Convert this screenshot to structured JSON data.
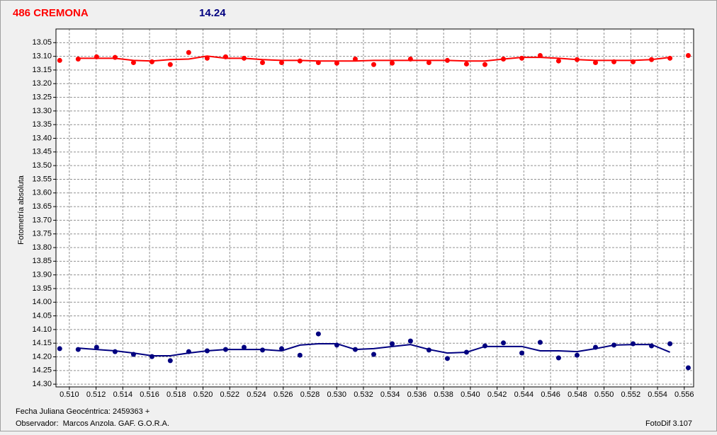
{
  "header": {
    "title": "486 CREMONA",
    "magnitude": "14.24"
  },
  "chart_data": {
    "type": "scatter",
    "ylabel": "Fotometría absoluta",
    "y_inverted": true,
    "grid": true,
    "xlim": [
      0.509,
      0.5567
    ],
    "ylim": [
      13.0,
      14.31
    ],
    "xticks": [
      {
        "value": 0.51,
        "label": "0.510"
      },
      0.512,
      0.514,
      0.516,
      0.518,
      {
        "value": 0.52,
        "label": "0.520"
      },
      0.522,
      0.524,
      0.526,
      0.528,
      {
        "value": 0.53,
        "label": "0.530"
      },
      0.532,
      0.534,
      0.536,
      0.538,
      {
        "value": 0.54,
        "label": "0.540"
      },
      0.542,
      0.544,
      0.546,
      0.548,
      {
        "value": 0.55,
        "label": "0.550"
      },
      0.552,
      0.554,
      0.556
    ],
    "yticks": [
      13.05,
      {
        "value": 13.1,
        "label": "13.10"
      },
      13.15,
      {
        "value": 13.2,
        "label": "13.20"
      },
      13.25,
      {
        "value": 13.3,
        "label": "13.30"
      },
      13.35,
      {
        "value": 13.4,
        "label": "13.40"
      },
      13.45,
      {
        "value": 13.5,
        "label": "13.50"
      },
      13.55,
      {
        "value": 13.6,
        "label": "13.60"
      },
      13.65,
      {
        "value": 13.7,
        "label": "13.70"
      },
      13.75,
      {
        "value": 13.8,
        "label": "13.80"
      },
      13.85,
      {
        "value": 13.9,
        "label": "13.90"
      },
      13.95,
      {
        "value": 14,
        "label": "14.00"
      },
      14.05,
      {
        "value": 14.1,
        "label": "14.10"
      },
      14.15,
      {
        "value": 14.2,
        "label": "14.20"
      },
      14.25,
      {
        "value": 14.3,
        "label": "14.30"
      }
    ],
    "x": [
      0.50928,
      0.51066,
      0.51204,
      0.51342,
      0.5148,
      0.51618,
      0.51755,
      0.51893,
      0.52031,
      0.52169,
      0.52307,
      0.52445,
      0.52588,
      0.52725,
      0.52863,
      0.53001,
      0.53139,
      0.53277,
      0.53415,
      0.53552,
      0.5369,
      0.53828,
      0.53971,
      0.54109,
      0.54247,
      0.54385,
      0.54522,
      0.5466,
      0.54798,
      0.54936,
      0.55074,
      0.55217,
      0.55355,
      0.55493,
      0.5563
    ],
    "series": [
      {
        "color": "#ff0000",
        "values": [
          13.115,
          13.11,
          13.102,
          13.104,
          13.123,
          13.12,
          13.13,
          13.086,
          13.107,
          13.102,
          13.107,
          13.123,
          13.123,
          13.117,
          13.123,
          13.125,
          13.11,
          13.13,
          13.125,
          13.11,
          13.123,
          13.115,
          13.128,
          13.13,
          13.11,
          13.107,
          13.097,
          13.117,
          13.112,
          13.123,
          13.12,
          13.12,
          13.112,
          13.107,
          13.097
        ],
        "fit": [
          null,
          13.107,
          13.107,
          13.107,
          13.115,
          13.117,
          13.112,
          13.11,
          13.099,
          13.107,
          13.107,
          13.112,
          13.115,
          13.115,
          13.117,
          13.117,
          13.117,
          13.115,
          13.115,
          13.115,
          13.115,
          13.115,
          13.117,
          13.117,
          13.11,
          13.104,
          13.104,
          13.107,
          13.112,
          13.115,
          13.115,
          13.115,
          13.112,
          13.104,
          null
        ]
      },
      {
        "color": "#000080",
        "values": [
          14.17,
          14.173,
          14.165,
          14.181,
          14.191,
          14.199,
          14.214,
          14.181,
          14.178,
          14.173,
          14.165,
          14.175,
          14.17,
          14.194,
          14.116,
          14.157,
          14.173,
          14.191,
          14.152,
          14.142,
          14.175,
          14.206,
          14.183,
          14.16,
          14.149,
          14.186,
          14.147,
          14.204,
          14.194,
          14.165,
          14.157,
          14.152,
          14.16,
          14.152,
          14.24
        ],
        "fit": [
          null,
          14.168,
          14.173,
          14.178,
          14.186,
          14.196,
          14.196,
          14.186,
          14.178,
          14.173,
          14.173,
          14.173,
          14.178,
          14.157,
          14.152,
          14.152,
          14.173,
          14.17,
          14.162,
          14.155,
          14.173,
          14.186,
          14.183,
          14.162,
          14.162,
          14.162,
          14.178,
          14.178,
          14.181,
          14.17,
          14.157,
          14.155,
          14.155,
          14.183,
          null
        ]
      }
    ]
  },
  "footer": {
    "date": "Fecha Juliana Geocéntrica: 2459363 +",
    "observer": "Observador:  Marcos Anzola. GAF. G.O.R.A.",
    "software": "FotoDif 3.107"
  }
}
